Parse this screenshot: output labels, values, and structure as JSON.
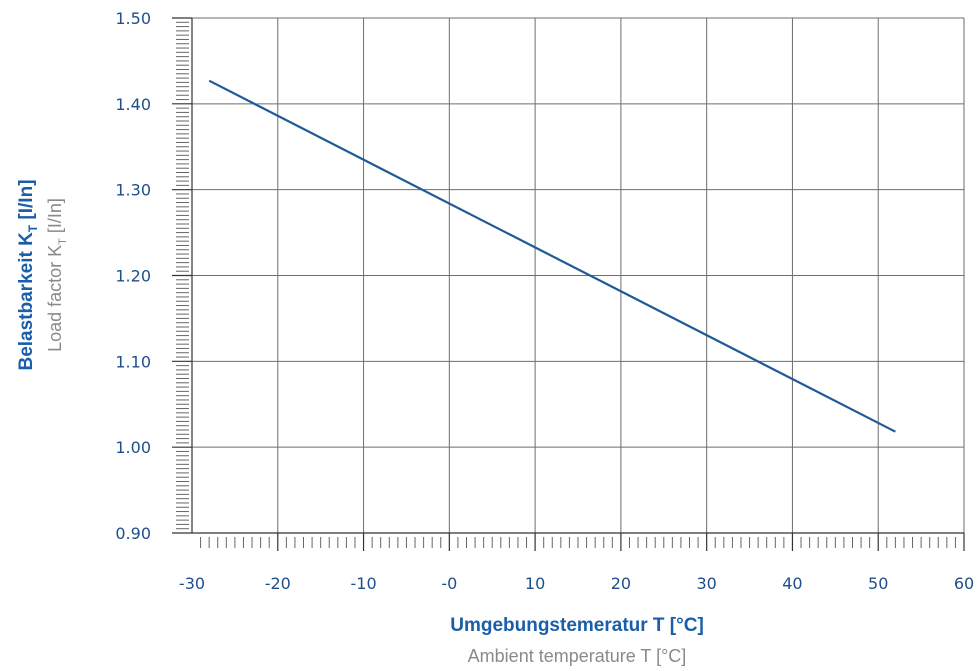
{
  "chart_data": {
    "type": "line",
    "x_ticks": [
      "-30",
      "-20",
      "-10",
      "-0",
      "10",
      "20",
      "30",
      "40",
      "50",
      "60"
    ],
    "y_ticks": [
      "0.90",
      "1.00",
      "1.10",
      "1.20",
      "1.30",
      "1.40",
      "1.50"
    ],
    "xlim": [
      -30,
      60
    ],
    "ylim": [
      0.9,
      1.5
    ],
    "grid": true,
    "series": [
      {
        "x": [
          -28,
          52
        ],
        "y": [
          1.427,
          1.018
        ],
        "color": "#1f5a96"
      }
    ],
    "xlabel_main": "Umgebungstemeratur T [°C]",
    "xlabel_sub": "Ambient temperature  T [°C]",
    "ylabel_main": "Belastbarkeit K",
    "ylabel_main_sub": "T",
    "ylabel_main_unit": " [I/In]",
    "ylabel_sub": "Load factor  K",
    "ylabel_sub_sub": "T",
    "ylabel_sub_unit": " [I/In]"
  }
}
